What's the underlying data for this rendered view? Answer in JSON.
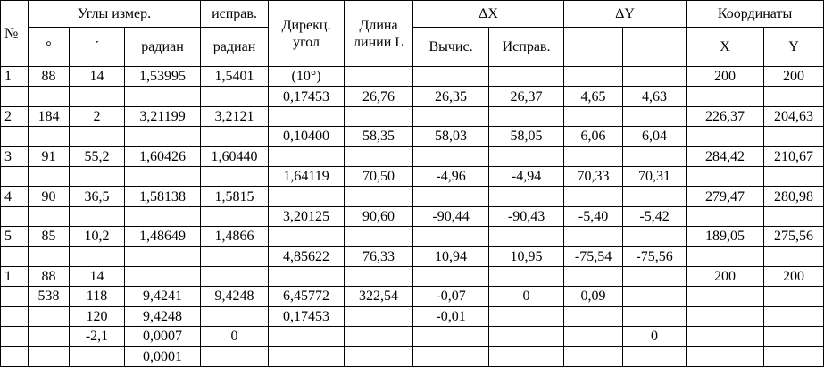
{
  "table": {
    "header": {
      "number": "№",
      "angles": "Углы измер.",
      "corrected": "исправ.",
      "direction": "Дирекц. угол",
      "length": "Длина линии L",
      "dx": "ΔX",
      "dy": "ΔY",
      "coords": "Координаты",
      "sub": {
        "deg": "°",
        "min": "´",
        "rad": "радиан",
        "rad_corr": "радиан",
        "dx_calc": "Вычис.",
        "dx_corr": "Исправ.",
        "x": "X",
        "y": "Y"
      }
    },
    "rows": [
      [
        "1",
        "88",
        "14",
        "1,53995",
        "1,5401",
        "(10°)",
        null,
        null,
        null,
        null,
        null,
        "200",
        "200"
      ],
      [
        null,
        null,
        null,
        null,
        null,
        "0,17453",
        "26,76",
        "26,35",
        "26,37",
        "4,65",
        "4,63",
        null,
        null
      ],
      [
        "2",
        "184",
        "2",
        "3,21199",
        "3,2121",
        null,
        null,
        null,
        null,
        null,
        null,
        "226,37",
        "204,63"
      ],
      [
        null,
        null,
        null,
        null,
        null,
        "0,10400",
        "58,35",
        "58,03",
        "58,05",
        "6,06",
        "6,04",
        null,
        null
      ],
      [
        "3",
        "91",
        "55,2",
        "1,60426",
        "1,60440",
        null,
        null,
        null,
        null,
        null,
        null,
        "284,42",
        "210,67"
      ],
      [
        null,
        null,
        null,
        null,
        null,
        "1,64119",
        "70,50",
        "-4,96",
        "-4,94",
        "70,33",
        "70,31",
        null,
        null
      ],
      [
        "4",
        "90",
        "36,5",
        "1,58138",
        "1,5815",
        null,
        null,
        null,
        null,
        null,
        null,
        "279,47",
        "280,98"
      ],
      [
        null,
        null,
        null,
        null,
        null,
        "3,20125",
        "90,60",
        "-90,44",
        "-90,43",
        "-5,40",
        "-5,42",
        null,
        null
      ],
      [
        "5",
        "85",
        "10,2",
        "1,48649",
        "1,4866",
        null,
        null,
        null,
        null,
        null,
        null,
        "189,05",
        "275,56"
      ],
      [
        null,
        null,
        null,
        null,
        null,
        "4,85622",
        "76,33",
        "10,94",
        "10,95",
        "-75,54",
        "-75,56",
        null,
        null
      ],
      [
        "1",
        "88",
        "14",
        null,
        null,
        null,
        null,
        null,
        null,
        null,
        null,
        "200",
        "200"
      ],
      [
        null,
        "538",
        "118",
        "9,4241",
        "9,4248",
        "6,45772",
        "322,54",
        "-0,07",
        "0",
        "0,09",
        null,
        null,
        null
      ],
      [
        null,
        null,
        "120",
        "9,4248",
        null,
        "0,17453",
        null,
        "-0,01",
        null,
        null,
        null,
        null,
        null
      ],
      [
        null,
        null,
        "-2,1",
        "0,0007",
        "0",
        null,
        null,
        null,
        null,
        null,
        "0",
        null,
        null
      ],
      [
        null,
        null,
        null,
        "0,0001",
        null,
        null,
        null,
        null,
        null,
        null,
        null,
        null,
        null
      ]
    ]
  }
}
